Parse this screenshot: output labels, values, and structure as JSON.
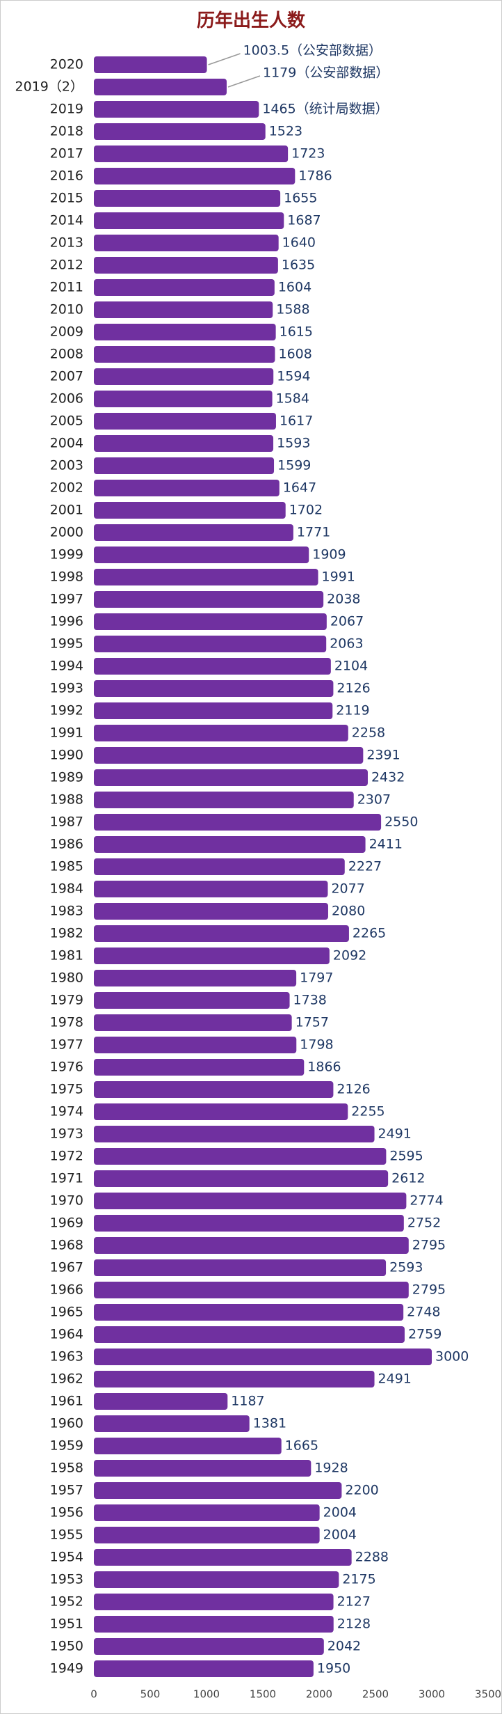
{
  "chart_data": {
    "type": "hbar",
    "title": "历年出生人数",
    "categories": [
      "2020",
      "2019（2）",
      "2019",
      "2018",
      "2017",
      "2016",
      "2015",
      "2014",
      "2013",
      "2012",
      "2011",
      "2010",
      "2009",
      "2008",
      "2007",
      "2006",
      "2005",
      "2004",
      "2003",
      "2002",
      "2001",
      "2000",
      "1999",
      "1998",
      "1997",
      "1996",
      "1995",
      "1994",
      "1993",
      "1992",
      "1991",
      "1990",
      "1989",
      "1988",
      "1987",
      "1986",
      "1985",
      "1984",
      "1983",
      "1982",
      "1981",
      "1980",
      "1979",
      "1978",
      "1977",
      "1976",
      "1975",
      "1974",
      "1973",
      "1972",
      "1971",
      "1970",
      "1969",
      "1968",
      "1967",
      "1966",
      "1965",
      "1964",
      "1963",
      "1962",
      "1961",
      "1960",
      "1959",
      "1958",
      "1957",
      "1956",
      "1955",
      "1954",
      "1953",
      "1952",
      "1951",
      "1950",
      "1949"
    ],
    "values": [
      1003.5,
      1179,
      1465,
      1523,
      1723,
      1786,
      1655,
      1687,
      1640,
      1635,
      1604,
      1588,
      1615,
      1608,
      1594,
      1584,
      1617,
      1593,
      1599,
      1647,
      1702,
      1771,
      1909,
      1991,
      2038,
      2067,
      2063,
      2104,
      2126,
      2119,
      2258,
      2391,
      2432,
      2307,
      2550,
      2411,
      2227,
      2077,
      2080,
      2265,
      2092,
      1797,
      1738,
      1757,
      1798,
      1866,
      2126,
      2255,
      2491,
      2595,
      2612,
      2774,
      2752,
      2795,
      2593,
      2795,
      2748,
      2759,
      3000,
      2491,
      1187,
      1381,
      1665,
      1928,
      2200,
      2004,
      2004,
      2288,
      2175,
      2127,
      2128,
      2042,
      1950
    ],
    "value_labels": [
      "1003.5（公安部数据）",
      "1179（公安部数据）",
      "1465（统计局数据）",
      "1523",
      "1723",
      "1786",
      "1655",
      "1687",
      "1640",
      "1635",
      "1604",
      "1588",
      "1615",
      "1608",
      "1594",
      "1584",
      "1617",
      "1593",
      "1599",
      "1647",
      "1702",
      "1771",
      "1909",
      "1991",
      "2038",
      "2067",
      "2063",
      "2104",
      "2126",
      "2119",
      "2258",
      "2391",
      "2432",
      "2307",
      "2550",
      "2411",
      "2227",
      "2077",
      "2080",
      "2265",
      "2092",
      "1797",
      "1738",
      "1757",
      "1798",
      "1866",
      "2126",
      "2255",
      "2491",
      "2595",
      "2612",
      "2774",
      "2752",
      "2795",
      "2593",
      "2795",
      "2748",
      "2759",
      "3000",
      "2491",
      "1187",
      "1381",
      "1665",
      "1928",
      "2200",
      "2004",
      "2004",
      "2288",
      "2175",
      "2127",
      "2128",
      "2042",
      "1950"
    ],
    "color": "#7030a0",
    "xlim": [
      0,
      3500
    ],
    "xticks": [
      0,
      500,
      1000,
      1500,
      2000,
      2500,
      3000,
      3500
    ]
  }
}
